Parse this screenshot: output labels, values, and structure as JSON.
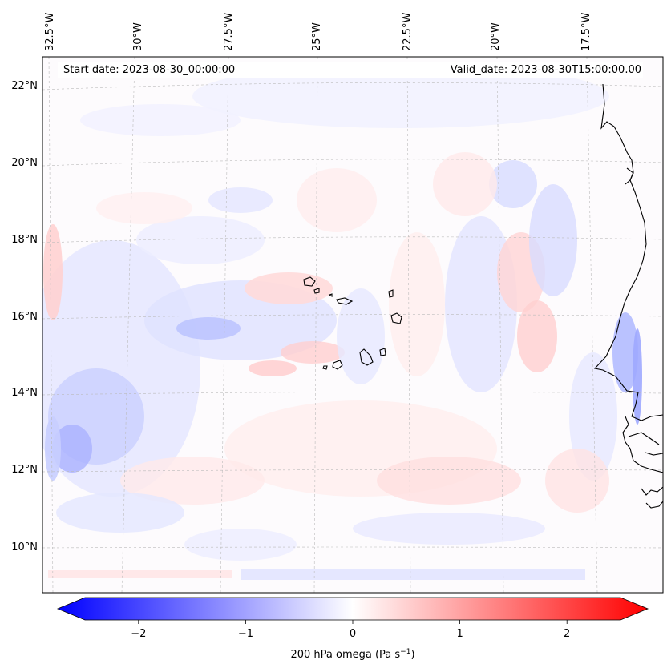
{
  "header": {
    "start_date": "Start date: 2023-08-30_00:00:00",
    "valid_date": "Valid_date: 2023-08-30T15:00:00.00"
  },
  "axes": {
    "lon_ticks": [
      "32.5°W",
      "30°W",
      "27.5°W",
      "25°W",
      "22.5°W",
      "20°W",
      "17.5°W"
    ],
    "lat_ticks": [
      "22°N",
      "20°N",
      "18°N",
      "16°N",
      "14°N",
      "12°N",
      "10°N"
    ]
  },
  "colorbar": {
    "label": "200 hPa omega (Pa s",
    "label_sup": "−1",
    "label_close": ")",
    "ticks": [
      "−2",
      "−1",
      "0",
      "1",
      "2"
    ],
    "vmin": -2.75,
    "vmax": 2.75,
    "tick_values": [
      -2,
      -1,
      0,
      1,
      2
    ]
  },
  "colors": {
    "negative": "#0000ff",
    "zero": "#ffffff",
    "positive": "#ff0000",
    "coastline": "#000000"
  }
}
